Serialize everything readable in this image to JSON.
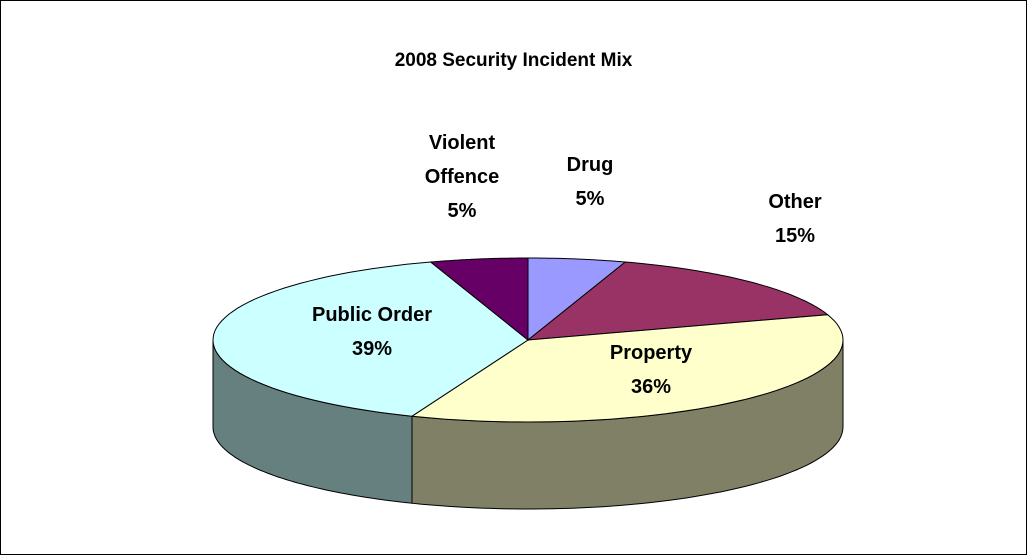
{
  "chart_data": {
    "type": "pie",
    "title": "2008 Security Incident Mix",
    "categories": [
      "Drug",
      "Other",
      "Property",
      "Public Order",
      "Violent Offence"
    ],
    "values": [
      5,
      15,
      36,
      39,
      5
    ],
    "value_labels": [
      "5%",
      "15%",
      "36%",
      "39%",
      "5%"
    ],
    "colors": [
      "#9999ff",
      "#993366",
      "#ffffcc",
      "#ccffff",
      "#660066"
    ]
  }
}
